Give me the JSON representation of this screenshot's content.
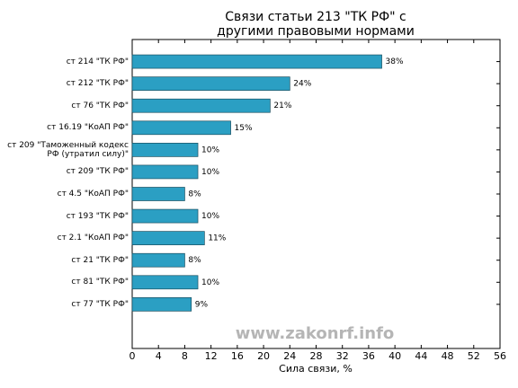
{
  "chart_data": {
    "type": "barh",
    "title": [
      "Связи статьи 213 \"ТК РФ\" с",
      "другими правовыми нормами"
    ],
    "xlabel": "Сила связи, %",
    "watermark": "www.zakonrf.info",
    "categories": [
      "ст 214 \"ТК РФ\"",
      "ст 212 \"ТК РФ\"",
      "ст 76 \"ТК РФ\"",
      "ст 16.19 \"КоАП РФ\"",
      "ст 209 \"Таможенный кодекс РФ (утратил силу)\"",
      "ст 209 \"ТК РФ\"",
      "ст 4.5 \"КоАП РФ\"",
      "ст 193 \"ТК РФ\"",
      "ст 2.1 \"КоАП РФ\"",
      "ст 21 \"ТК РФ\"",
      "ст 81 \"ТК РФ\"",
      "ст 77 \"ТК РФ\""
    ],
    "values": [
      38,
      24,
      21,
      15,
      10,
      10,
      8,
      10,
      11,
      8,
      10,
      9
    ],
    "value_labels": [
      "38%",
      "24%",
      "21%",
      "15%",
      "10%",
      "10%",
      "8%",
      "10%",
      "11%",
      "8%",
      "10%",
      "9%"
    ],
    "color": "#2b9fc3",
    "xlim": [
      0,
      56
    ],
    "xticks": [
      0,
      4,
      8,
      12,
      16,
      20,
      24,
      28,
      32,
      36,
      40,
      44,
      48,
      52,
      56
    ]
  }
}
